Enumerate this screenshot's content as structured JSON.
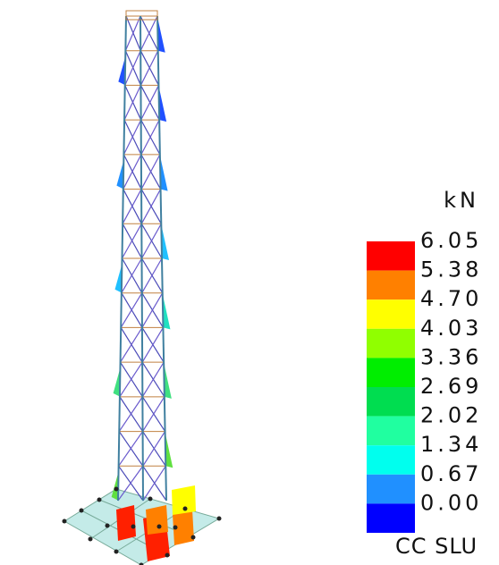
{
  "legend": {
    "unit": "kN",
    "labels": [
      "6.05",
      "5.38",
      "4.70",
      "4.03",
      "3.36",
      "2.69",
      "2.02",
      "1.34",
      "0.67",
      "0.00"
    ],
    "colors": [
      "#ff0000",
      "#ff8000",
      "#ffff00",
      "#90ff00",
      "#00ee00",
      "#00dd50",
      "#20ffa0",
      "#00ffee",
      "#2090ff",
      "#0000ff"
    ]
  },
  "caption": "CC SLU"
}
